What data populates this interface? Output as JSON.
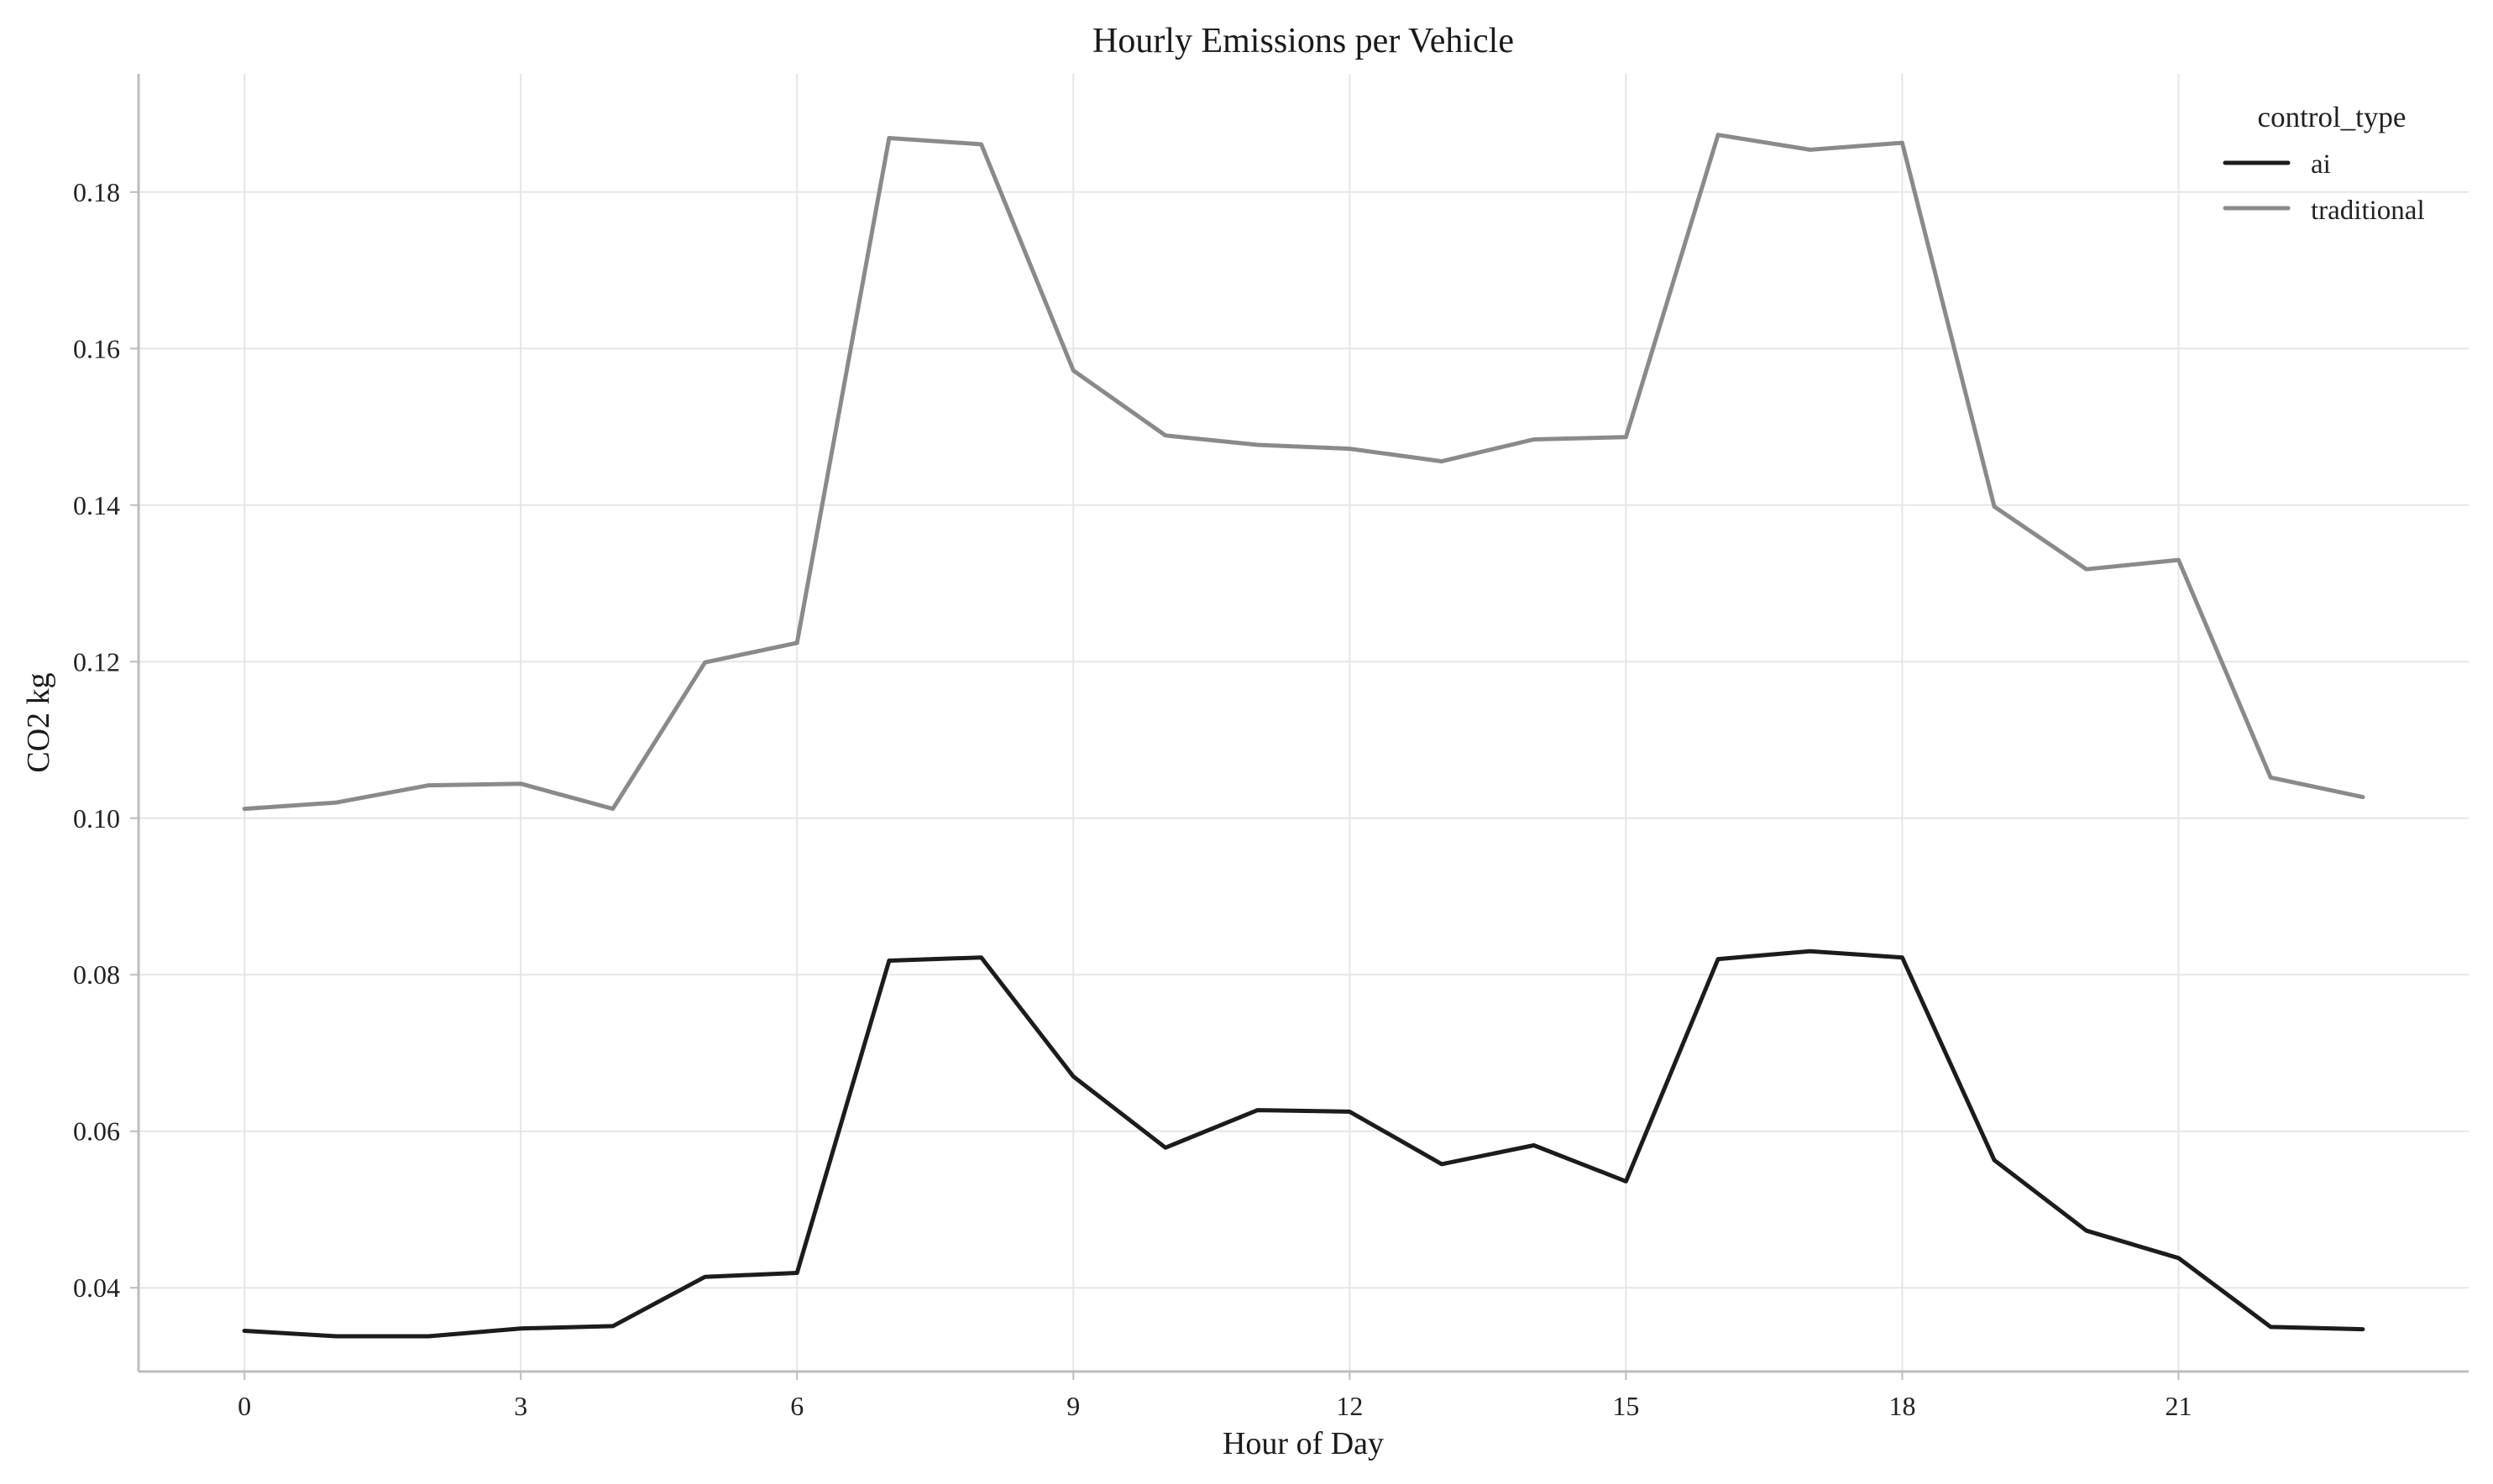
{
  "colors": {
    "ai": "#1c1c1c",
    "traditional": "#8a8a8a",
    "grid": "#e6e6e6",
    "spine": "#bdbdbd",
    "background": "#ffffff"
  },
  "chart_data": {
    "type": "line",
    "title": "Hourly Emissions per Vehicle",
    "xlabel": "Hour of Day",
    "ylabel": "CO2 kg",
    "x": [
      0,
      1,
      2,
      3,
      4,
      5,
      6,
      7,
      8,
      9,
      10,
      11,
      12,
      13,
      14,
      15,
      16,
      17,
      18,
      19,
      20,
      21,
      22,
      23
    ],
    "xticks": [
      0,
      3,
      6,
      9,
      12,
      15,
      18,
      21
    ],
    "xtick_labels": [
      "0",
      "3",
      "6",
      "9",
      "12",
      "15",
      "18",
      "21"
    ],
    "yticks": [
      0.04,
      0.06,
      0.08,
      0.1,
      0.12,
      0.14,
      0.16,
      0.18
    ],
    "ytick_labels": [
      "0.04",
      "0.06",
      "0.08",
      "0.10",
      "0.12",
      "0.14",
      "0.16",
      "0.18"
    ],
    "xlim": [
      -1.15,
      24.15
    ],
    "ylim": [
      0.0293,
      0.1951
    ],
    "grid": true,
    "legend": {
      "title": "control_type",
      "placement": "top-right"
    },
    "series": [
      {
        "name": "ai",
        "color": "#1c1c1c",
        "values": [
          0.0345,
          0.0338,
          0.0338,
          0.0348,
          0.0351,
          0.0414,
          0.0419,
          0.0818,
          0.0822,
          0.067,
          0.0579,
          0.0627,
          0.0625,
          0.0558,
          0.0582,
          0.0536,
          0.082,
          0.083,
          0.0822,
          0.0563,
          0.0473,
          0.0438,
          0.035,
          0.0347
        ]
      },
      {
        "name": "traditional",
        "color": "#8a8a8a",
        "values": [
          0.1012,
          0.102,
          0.1042,
          0.1044,
          0.1012,
          0.1199,
          0.1224,
          0.1869,
          0.1861,
          0.1572,
          0.1489,
          0.1477,
          0.1472,
          0.1456,
          0.1484,
          0.1487,
          0.1873,
          0.1854,
          0.1863,
          0.1398,
          0.1318,
          0.133,
          0.1052,
          0.1027
        ]
      }
    ]
  }
}
